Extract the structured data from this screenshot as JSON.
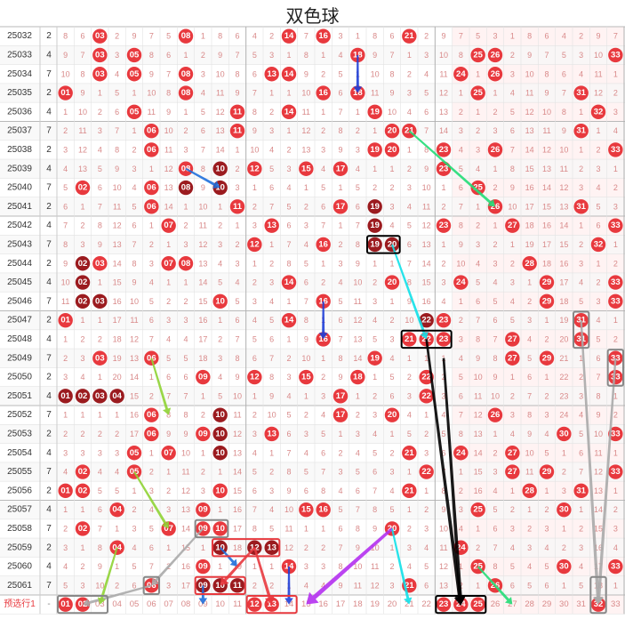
{
  "title": "双色球",
  "predict_label": "预选行1",
  "colors": {
    "red_ball": "#e8393e",
    "dark_ball": "#9b1b1f",
    "miss_text": "#d98a8a",
    "grid": "#e3e3e3",
    "row_alt": "#f6f6f6",
    "blue_zone_bg": "#fff3f3"
  },
  "chart_data": {
    "type": "table",
    "red_range": [
      1,
      33
    ],
    "rows": [
      {
        "issue": "25032",
        "n": 2,
        "reds": [
          3,
          8,
          14,
          16,
          21
        ]
      },
      {
        "issue": "25033",
        "n": 4,
        "reds": [
          3,
          5,
          18,
          25,
          26,
          33
        ]
      },
      {
        "issue": "25034",
        "n": 7,
        "reds": [
          3,
          5,
          8,
          13,
          14,
          24,
          26
        ]
      },
      {
        "issue": "25035",
        "n": 2,
        "reds": [
          1,
          8,
          16,
          18,
          25,
          31
        ]
      },
      {
        "issue": "25036",
        "n": 4,
        "reds": [
          5,
          11,
          14,
          19,
          32
        ]
      },
      {
        "issue": "25037",
        "n": 7,
        "reds": [
          6,
          11,
          20,
          21,
          31
        ]
      },
      {
        "issue": "25038",
        "n": 2,
        "reds": [
          6,
          19,
          20,
          23,
          26,
          33
        ]
      },
      {
        "issue": "25039",
        "n": 4,
        "reds": [
          8,
          10,
          12,
          15,
          17,
          23
        ]
      },
      {
        "issue": "25040",
        "n": 7,
        "reds": [
          2,
          6,
          8,
          10,
          25
        ]
      },
      {
        "issue": "25041",
        "n": 2,
        "reds": [
          6,
          11,
          17,
          19,
          26,
          31
        ]
      },
      {
        "issue": "25042",
        "n": 4,
        "reds": [
          7,
          13,
          19,
          23,
          27,
          33
        ]
      },
      {
        "issue": "25043",
        "n": 7,
        "reds": [
          12,
          16,
          19,
          20,
          32
        ]
      },
      {
        "issue": "25044",
        "n": 2,
        "reds": [
          2,
          3,
          7,
          8,
          28
        ]
      },
      {
        "issue": "25045",
        "n": 4,
        "reds": [
          2,
          14,
          20,
          24,
          29,
          33
        ]
      },
      {
        "issue": "25046",
        "n": 7,
        "reds": [
          2,
          3,
          10,
          16,
          29,
          33
        ]
      },
      {
        "issue": "25047",
        "n": 2,
        "reds": [
          1,
          14,
          22,
          23,
          31
        ]
      },
      {
        "issue": "25048",
        "n": 4,
        "reds": [
          16,
          21,
          22,
          23,
          27,
          31
        ]
      },
      {
        "issue": "25049",
        "n": 7,
        "reds": [
          3,
          6,
          19,
          27,
          29,
          33
        ]
      },
      {
        "issue": "25050",
        "n": 2,
        "reds": [
          9,
          12,
          15,
          18,
          22,
          33
        ]
      },
      {
        "issue": "25051",
        "n": 4,
        "reds": [
          1,
          2,
          3,
          4,
          17,
          22
        ]
      },
      {
        "issue": "25052",
        "n": 7,
        "reds": [
          6,
          10,
          17,
          20,
          26
        ]
      },
      {
        "issue": "25053",
        "n": 2,
        "reds": [
          6,
          9,
          10,
          13,
          30,
          33
        ]
      },
      {
        "issue": "25054",
        "n": 4,
        "reds": [
          5,
          7,
          10,
          21,
          24,
          27
        ]
      },
      {
        "issue": "25055",
        "n": 7,
        "reds": [
          2,
          5,
          22,
          27,
          29,
          33
        ]
      },
      {
        "issue": "25056",
        "n": 2,
        "reds": [
          1,
          2,
          10,
          21,
          28,
          31
        ]
      },
      {
        "issue": "25057",
        "n": 4,
        "reds": [
          4,
          9,
          15,
          16,
          25,
          30
        ]
      },
      {
        "issue": "25058",
        "n": 7,
        "reds": [
          2,
          7,
          9,
          10,
          20
        ]
      },
      {
        "issue": "25059",
        "n": 2,
        "reds": [
          4,
          10,
          12,
          13,
          24
        ]
      },
      {
        "issue": "25060",
        "n": 4,
        "reds": [
          9,
          14,
          25,
          30,
          33
        ]
      },
      {
        "issue": "25061",
        "n": 7,
        "reds": [
          6,
          9,
          10,
          11,
          21,
          26
        ]
      }
    ],
    "dark_balls": [
      {
        "issue": "25039",
        "num": 10
      },
      {
        "issue": "25040",
        "num": 8
      },
      {
        "issue": "25040",
        "num": 10
      },
      {
        "issue": "25041",
        "num": 19
      },
      {
        "issue": "25042",
        "num": 19
      },
      {
        "issue": "25043",
        "num": 19
      },
      {
        "issue": "25043",
        "num": 20
      },
      {
        "issue": "25044",
        "num": 2
      },
      {
        "issue": "25045",
        "num": 2
      },
      {
        "issue": "25046",
        "num": 2
      },
      {
        "issue": "25046",
        "num": 3
      },
      {
        "issue": "25047",
        "num": 22
      },
      {
        "issue": "25051",
        "num": 1
      },
      {
        "issue": "25051",
        "num": 2
      },
      {
        "issue": "25051",
        "num": 3
      },
      {
        "issue": "25051",
        "num": 4
      },
      {
        "issue": "25052",
        "num": 10
      },
      {
        "issue": "25053",
        "num": 10
      },
      {
        "issue": "25054",
        "num": 10
      },
      {
        "issue": "25059",
        "num": 10
      },
      {
        "issue": "25059",
        "num": 12
      },
      {
        "issue": "25059",
        "num": 13
      },
      {
        "issue": "25061",
        "num": 9
      },
      {
        "issue": "25061",
        "num": 10
      },
      {
        "issue": "25061",
        "num": 11
      }
    ],
    "prediction_highlight": [
      1,
      2,
      12,
      13,
      23,
      24,
      25,
      32
    ]
  }
}
